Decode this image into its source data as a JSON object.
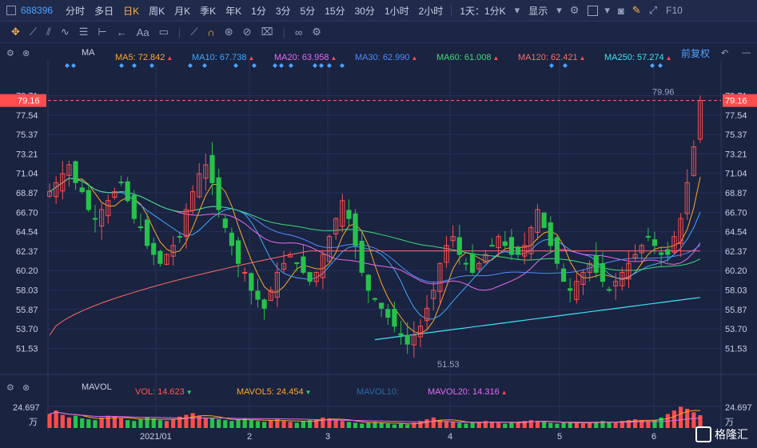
{
  "topbar": {
    "stock_code": "688396",
    "periods": [
      "分时",
      "多日",
      "日K",
      "周K",
      "月K",
      "季K",
      "年K",
      "1分",
      "3分",
      "5分",
      "15分",
      "30分",
      "1小时",
      "2小时"
    ],
    "active_period": "日K",
    "interval_label": "1天：1分K",
    "display_label": "显示",
    "f10_label": "F10"
  },
  "toolbar": {
    "text_tool": "Aa"
  },
  "ma_legend": {
    "label": "MA",
    "items": [
      {
        "text": "MA5: 72.842",
        "color": "#ffa726",
        "dir": "up"
      },
      {
        "text": "MA10: 67.738",
        "color": "#3fa9ff",
        "dir": "up"
      },
      {
        "text": "MA20: 63.958",
        "color": "#e56bf0",
        "dir": "up"
      },
      {
        "text": "MA30: 62.990",
        "color": "#4f8cff",
        "dir": "up"
      },
      {
        "text": "MA60: 61.008",
        "color": "#3fdc7a",
        "dir": "up"
      },
      {
        "text": "MA120: 62.421",
        "color": "#ff6b6b",
        "dir": "up"
      },
      {
        "text": "MA250: 57.274",
        "color": "#3fe3f0",
        "dir": "up"
      }
    ],
    "adjust_label": "前复权"
  },
  "vol_legend": {
    "label": "MAVOL",
    "items": [
      {
        "text": "VOL: 14.623",
        "color": "#ff5a5a",
        "dir": "dn"
      },
      {
        "text": "MAVOL5: 24.454",
        "color": "#ffa726",
        "dir": "dn"
      },
      {
        "text": "MAVOL10:",
        "color": "#2b6ca3",
        "dir": ""
      },
      {
        "text": "MAVOL20: 14.316",
        "color": "#e56bf0",
        "dir": "up"
      }
    ]
  },
  "price_axis": {
    "ticks": [
      "79.71",
      "77.54",
      "75.37",
      "73.21",
      "71.04",
      "68.87",
      "66.70",
      "64.54",
      "62.37",
      "60.20",
      "58.03",
      "55.87",
      "53.70",
      "51.53"
    ],
    "current_price": "79.16",
    "max_label": "79.96",
    "min_label": "51.53"
  },
  "volume_axis": {
    "max_value": "24.697",
    "unit": "万"
  },
  "date_axis": [
    "2021/01",
    "2",
    "3",
    "4",
    "5",
    "6"
  ],
  "watermark": "格隆汇",
  "colors": {
    "up": "#ff4d4d",
    "down": "#27c24c",
    "background": "#1a2340"
  },
  "chart_data": {
    "type": "candlestick",
    "ylim": [
      51.53,
      79.96
    ],
    "series": [
      {
        "name": "MA5",
        "values": [
          72.842
        ]
      },
      {
        "name": "MA10",
        "values": [
          67.738
        ]
      },
      {
        "name": "MA20",
        "values": [
          63.958
        ]
      },
      {
        "name": "MA30",
        "values": [
          62.99
        ]
      },
      {
        "name": "MA60",
        "values": [
          61.008
        ]
      },
      {
        "name": "MA120",
        "values": [
          62.421
        ]
      },
      {
        "name": "MA250",
        "values": [
          57.274
        ]
      }
    ],
    "close_trend": [
      69,
      70,
      71,
      72,
      70,
      69,
      67,
      66,
      67,
      68,
      69,
      70,
      68,
      66,
      65,
      63,
      62,
      61,
      62,
      63,
      64,
      67,
      69,
      71,
      72,
      70,
      67,
      65,
      63,
      61,
      60,
      58,
      57,
      56,
      58,
      60,
      61,
      62,
      61,
      60,
      59,
      60,
      62,
      64,
      66,
      68,
      66,
      63,
      60,
      58,
      57,
      56,
      55,
      54,
      53,
      52,
      53,
      54,
      56,
      58,
      61,
      63,
      64,
      62,
      61,
      60,
      61,
      62,
      63,
      64,
      63,
      62,
      62,
      63,
      65,
      67,
      65,
      63,
      61,
      59,
      58,
      59,
      60,
      61,
      60,
      59,
      58,
      59,
      60,
      61,
      62,
      63,
      64,
      63,
      62,
      62,
      64,
      66,
      70,
      74,
      79.16
    ],
    "volume_trend": [
      16,
      20,
      15,
      12,
      14,
      11,
      10,
      9,
      12,
      14,
      13,
      11,
      9,
      8,
      10,
      12,
      11,
      9,
      8,
      10,
      13,
      15,
      17,
      14,
      12,
      11,
      10,
      9,
      8,
      10,
      11,
      9,
      8,
      7,
      9,
      10,
      8,
      7,
      6,
      8,
      9,
      10,
      12,
      11,
      9,
      8,
      7,
      6,
      5,
      6,
      7,
      6,
      5,
      4,
      5,
      4,
      6,
      8,
      10,
      12,
      9,
      8,
      7,
      6,
      5,
      6,
      7,
      8,
      7,
      6,
      5,
      6,
      7,
      8,
      9,
      8,
      7,
      6,
      5,
      6,
      7,
      6,
      5,
      6,
      7,
      8,
      7,
      6,
      8,
      9,
      10,
      9,
      8,
      9,
      12,
      16,
      20,
      24.697,
      22,
      18,
      14.623
    ],
    "volume_unit": "万"
  }
}
